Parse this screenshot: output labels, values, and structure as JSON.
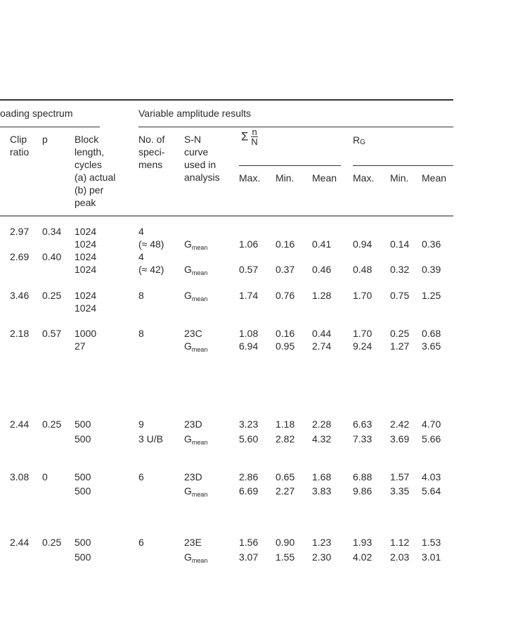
{
  "header": {
    "group_loading": "oading spectrum",
    "group_variable": "Variable amplitude results",
    "clip_ratio": [
      "Clip",
      "ratio"
    ],
    "p": "p",
    "block_length": [
      "Block",
      "length,",
      "cycles",
      "(a) actual",
      "(b) per",
      "peak"
    ],
    "no_specimens": [
      "No. of",
      "speci-",
      "mens"
    ],
    "sn_curve": [
      "S-N",
      "curve",
      "used in",
      "analysis"
    ],
    "sum_symbol": "Σ",
    "sum_num": "n",
    "sum_den": "N",
    "rg_base": "R",
    "rg_sub": "G",
    "max": "Max.",
    "min": "Min.",
    "mean": "Mean"
  },
  "rows": [
    [
      "2.97",
      "0.34",
      "1024",
      "4",
      "",
      "",
      "",
      "",
      "",
      "",
      ""
    ],
    [
      "",
      "",
      "1024",
      "(≈ 48)",
      "Gmean",
      "1.06",
      "0.16",
      "0.41",
      "0.94",
      "0.14",
      "0.36"
    ],
    [
      "2.69",
      "0.40",
      "1024",
      "4",
      "",
      "",
      "",
      "",
      "",
      "",
      ""
    ],
    [
      "",
      "",
      "1024",
      "(≈ 42)",
      "Gmean",
      "0.57",
      "0.37",
      "0.46",
      "0.48",
      "0.32",
      "0.39"
    ],
    [
      "3.46",
      "0.25",
      "1024",
      "8",
      "Gmean",
      "1.74",
      "0.76",
      "1.28",
      "1.70",
      "0.75",
      "1.25"
    ],
    [
      "",
      "",
      "1024",
      "",
      "",
      "",
      "",
      "",
      "",
      "",
      ""
    ],
    [
      "2.18",
      "0.57",
      "1000",
      "8",
      "23C",
      "1.08",
      "0.16",
      "0.44",
      "1.70",
      "0.25",
      "0.68"
    ],
    [
      "",
      "",
      "27",
      "",
      "Gmean",
      "6.94",
      "0.95",
      "2.74",
      "9.24",
      "1.27",
      "3.65"
    ],
    [
      "2.44",
      "0.25",
      "500",
      "9",
      "23D",
      "3.23",
      "1.18",
      "2.28",
      "6.63",
      "2.42",
      "4.70"
    ],
    [
      "",
      "",
      "500",
      "3 U/B",
      "Gmean",
      "5.60",
      "2.82",
      "4.32",
      "7.33",
      "3.69",
      "5.66"
    ],
    [
      "3.08",
      "0",
      "500",
      "6",
      "23D",
      "2.86",
      "0.65",
      "1.68",
      "6.88",
      "1.57",
      "4.03"
    ],
    [
      "",
      "",
      "500",
      "",
      "Gmean",
      "6.69",
      "2.27",
      "3.83",
      "9.86",
      "3.35",
      "5.64"
    ],
    [
      "2.44",
      "0.25",
      "500",
      "6",
      "23E",
      "1.56",
      "0.90",
      "1.23",
      "1.93",
      "1.12",
      "1.53"
    ],
    [
      "",
      "",
      "500",
      "",
      "Gmean",
      "3.07",
      "1.55",
      "2.30",
      "4.02",
      "2.03",
      "3.01"
    ]
  ]
}
